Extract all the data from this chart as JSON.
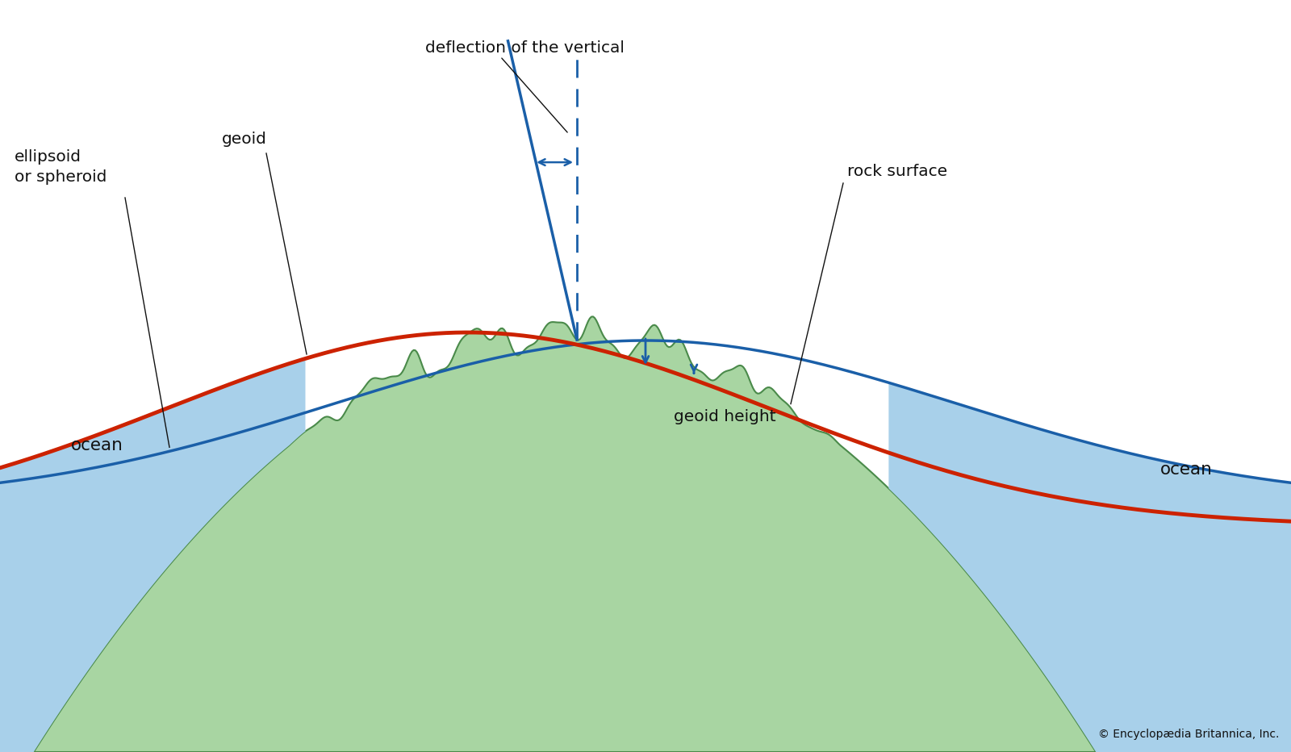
{
  "bg_color": "#ffffff",
  "land_color": "#a8d5a2",
  "land_edge_color": "#4a8a4a",
  "ocean_color": "#a8d0ea",
  "ellipsoid_color": "#1a5fa8",
  "geoid_color": "#cc2200",
  "annotation_color": "#1a5fa8",
  "text_color": "#111111",
  "copyright_text": "© Encyclopædia Britannica, Inc.",
  "label_ellipsoid": "ellipsoid\nor spheroid",
  "label_geoid": "geoid",
  "label_rock_surface": "rock surface",
  "label_ocean_left": "ocean",
  "label_ocean_right": "ocean",
  "label_geoid_height": "geoid height",
  "label_deflection": "deflection of the vertical",
  "figsize": [
    16.0,
    9.32
  ],
  "dpi": 100
}
